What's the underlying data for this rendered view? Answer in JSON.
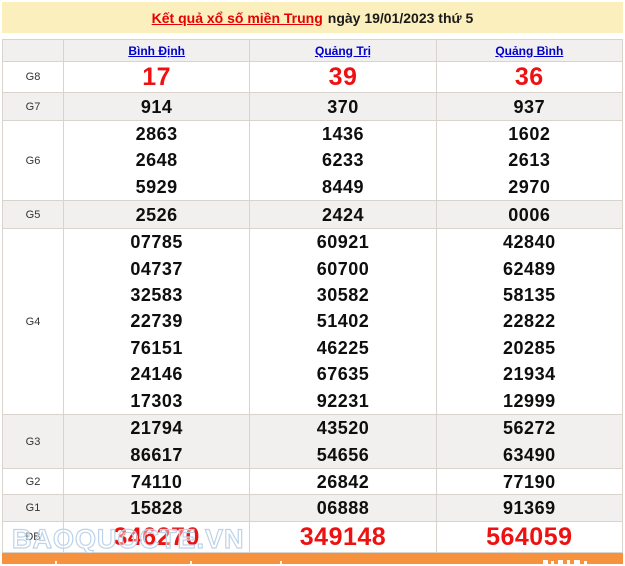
{
  "banner": {
    "title_link": "Kết quả xổ số miền Trung",
    "title_rest": "ngày 19/01/2023 thứ 5"
  },
  "table": {
    "columns": [
      "Bình Định",
      "Quảng Trị",
      "Quảng Bình"
    ],
    "rows": [
      {
        "label": "G8",
        "highlight": true,
        "values": [
          [
            "17"
          ],
          [
            "39"
          ],
          [
            "36"
          ]
        ]
      },
      {
        "label": "G7",
        "highlight": false,
        "values": [
          [
            "914"
          ],
          [
            "370"
          ],
          [
            "937"
          ]
        ]
      },
      {
        "label": "G6",
        "highlight": false,
        "values": [
          [
            "2863",
            "2648",
            "5929"
          ],
          [
            "1436",
            "6233",
            "8449"
          ],
          [
            "1602",
            "2613",
            "2970"
          ]
        ]
      },
      {
        "label": "G5",
        "highlight": false,
        "values": [
          [
            "2526"
          ],
          [
            "2424"
          ],
          [
            "0006"
          ]
        ]
      },
      {
        "label": "G4",
        "highlight": false,
        "values": [
          [
            "07785",
            "04737",
            "32583",
            "22739",
            "76151",
            "24146",
            "17303"
          ],
          [
            "60921",
            "60700",
            "30582",
            "51402",
            "46225",
            "67635",
            "92231"
          ],
          [
            "42840",
            "62489",
            "58135",
            "22822",
            "20285",
            "21934",
            "12999"
          ]
        ]
      },
      {
        "label": "G3",
        "highlight": false,
        "values": [
          [
            "21794",
            "86617"
          ],
          [
            "43520",
            "54656"
          ],
          [
            "56272",
            "63490"
          ]
        ]
      },
      {
        "label": "G2",
        "highlight": false,
        "values": [
          [
            "74110"
          ],
          [
            "26842"
          ],
          [
            "77190"
          ]
        ]
      },
      {
        "label": "G1",
        "highlight": false,
        "values": [
          [
            "15828"
          ],
          [
            "06888"
          ],
          [
            "91369"
          ]
        ]
      },
      {
        "label": "ĐB",
        "highlight": true,
        "values": [
          [
            "346270"
          ],
          [
            "349148"
          ],
          [
            "564059"
          ]
        ]
      }
    ]
  },
  "watermark": "BAOQUOCTE.VN",
  "colors": {
    "banner_bg": "#fcefbe",
    "title_link_red": "#e80000",
    "column_link_blue": "#0000cc",
    "value_black": "#0e0e0e",
    "value_red": "#ee1111",
    "row_alt_bg": "#f1f0ee",
    "border": "#d8d3cd",
    "footer_orange": "#f6923e",
    "watermark_blue": "#bdd3e9"
  }
}
